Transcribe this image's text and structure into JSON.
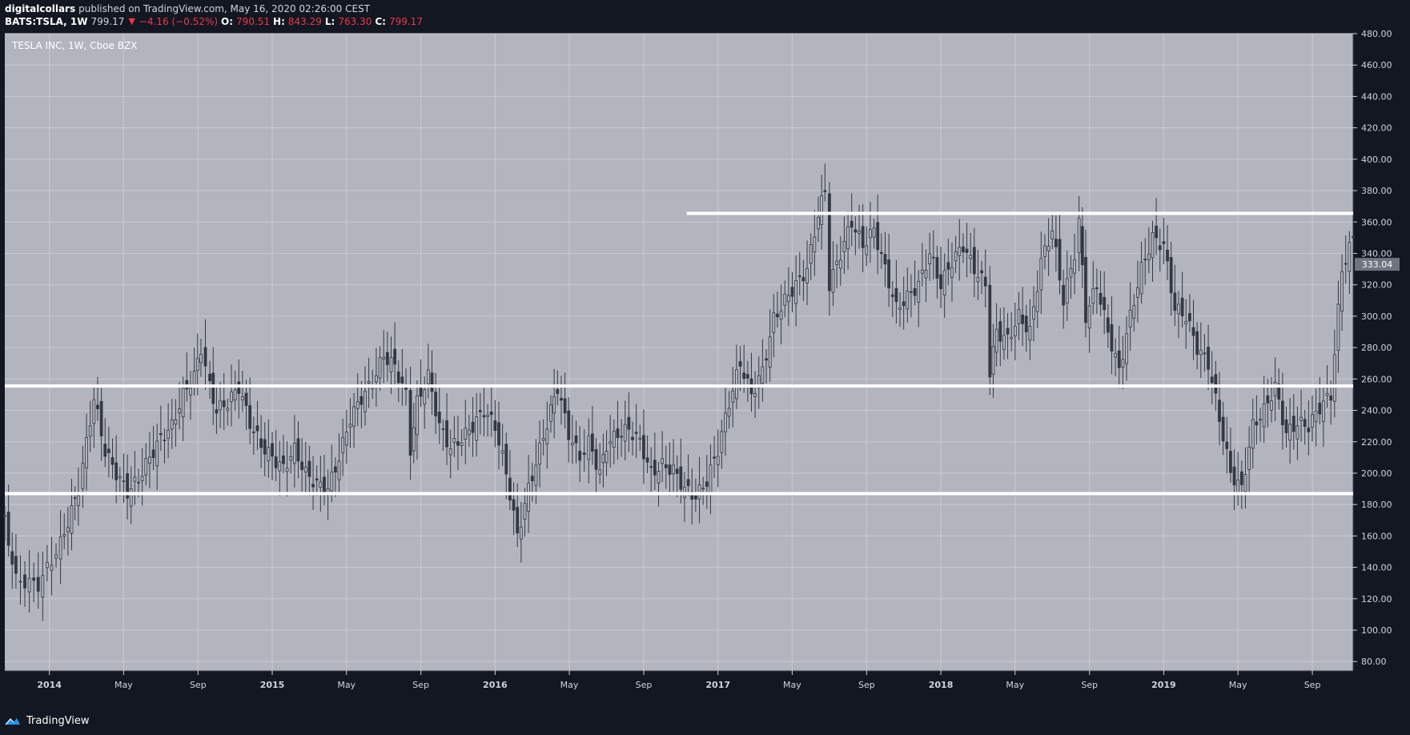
{
  "header": {
    "publisher": "digitalcollars",
    "published_text": "published on TradingView.com, May 16, 2020 02:26:00 CEST",
    "symbol": "BATS:TSLA, 1W",
    "last": "799.17",
    "change": "−4.16 (−0.52%)",
    "o_label": "O:",
    "o_value": "790.51",
    "h_label": "H:",
    "h_value": "843.29",
    "l_label": "L:",
    "l_value": "763.30",
    "c_label": "C:",
    "c_value": "799.17"
  },
  "footer": {
    "brand": "TradingView"
  },
  "colors": {
    "plot_background": "#b2b5be",
    "candle": "#343842",
    "grid": "#c9cbd2",
    "horizontal_line": "#ffffff",
    "price_badge": "#6f747f",
    "axis_text": "#d1d4dc"
  },
  "chart_data": {
    "type": "candlestick",
    "title": "TESLA INC, 1W, Cboe BZX",
    "x_ticks": [
      {
        "label": "2014",
        "time": 2014.0,
        "bold": true
      },
      {
        "label": "May",
        "time": 2014.333
      },
      {
        "label": "Sep",
        "time": 2014.667
      },
      {
        "label": "2015",
        "time": 2015.0,
        "bold": true
      },
      {
        "label": "May",
        "time": 2015.333
      },
      {
        "label": "Sep",
        "time": 2015.667
      },
      {
        "label": "2016",
        "time": 2016.0,
        "bold": true
      },
      {
        "label": "May",
        "time": 2016.333
      },
      {
        "label": "Sep",
        "time": 2016.667
      },
      {
        "label": "2017",
        "time": 2017.0,
        "bold": true
      },
      {
        "label": "May",
        "time": 2017.333
      },
      {
        "label": "Sep",
        "time": 2017.667
      },
      {
        "label": "2018",
        "time": 2018.0,
        "bold": true
      },
      {
        "label": "May",
        "time": 2018.333
      },
      {
        "label": "Sep",
        "time": 2018.667
      },
      {
        "label": "2019",
        "time": 2019.0,
        "bold": true
      },
      {
        "label": "May",
        "time": 2019.333
      },
      {
        "label": "Sep",
        "time": 2019.667
      }
    ],
    "x_range": [
      2013.8,
      2019.85
    ],
    "y_ticks": [
      80,
      100,
      120,
      140,
      160,
      180,
      200,
      220,
      240,
      260,
      280,
      300,
      320,
      340,
      360,
      380,
      400,
      420,
      440,
      460,
      480
    ],
    "y_range": [
      74,
      480
    ],
    "price_badge": "333.04",
    "price_badge_value": 333.04,
    "horizontal_lines": [
      {
        "y": 365.5,
        "x_start": 2016.86
      },
      {
        "y": 255.5,
        "x_start": 2013.8
      },
      {
        "y": 187.0,
        "x_start": 2013.8
      }
    ],
    "weekly_close": [
      [
        2013.8,
        169.0
      ],
      [
        2013.85,
        132.0
      ],
      [
        2013.95,
        129.0
      ],
      [
        2014.05,
        155.0
      ],
      [
        2014.1,
        176.0
      ],
      [
        2014.13,
        190.0
      ],
      [
        2014.15,
        205.0
      ],
      [
        2014.2,
        248.0
      ],
      [
        2014.25,
        214.0
      ],
      [
        2014.3,
        200.0
      ],
      [
        2014.35,
        188.0
      ],
      [
        2014.4,
        196.0
      ],
      [
        2014.45,
        210.0
      ],
      [
        2014.5,
        222.0
      ],
      [
        2014.55,
        230.0
      ],
      [
        2014.6,
        250.0
      ],
      [
        2014.65,
        262.0
      ],
      [
        2014.68,
        280.0
      ],
      [
        2014.72,
        255.0
      ],
      [
        2014.75,
        240.0
      ],
      [
        2014.8,
        245.0
      ],
      [
        2014.85,
        255.0
      ],
      [
        2014.9,
        232.0
      ],
      [
        2014.95,
        218.0
      ],
      [
        2015.0,
        210.0
      ],
      [
        2015.05,
        203.0
      ],
      [
        2015.1,
        215.0
      ],
      [
        2015.15,
        200.0
      ],
      [
        2015.2,
        193.0
      ],
      [
        2015.25,
        190.0
      ],
      [
        2015.3,
        210.0
      ],
      [
        2015.35,
        235.0
      ],
      [
        2015.4,
        248.0
      ],
      [
        2015.45,
        258.0
      ],
      [
        2015.5,
        275.0
      ],
      [
        2015.55,
        268.0
      ],
      [
        2015.6,
        250.0
      ],
      [
        2015.62,
        215.0
      ],
      [
        2015.65,
        245.0
      ],
      [
        2015.7,
        262.0
      ],
      [
        2015.75,
        230.0
      ],
      [
        2015.8,
        216.0
      ],
      [
        2015.85,
        222.0
      ],
      [
        2015.9,
        230.0
      ],
      [
        2015.95,
        240.0
      ],
      [
        2016.0,
        230.0
      ],
      [
        2016.05,
        200.0
      ],
      [
        2016.1,
        160.0
      ],
      [
        2016.15,
        190.0
      ],
      [
        2016.2,
        215.0
      ],
      [
        2016.25,
        240.0
      ],
      [
        2016.28,
        255.0
      ],
      [
        2016.33,
        225.0
      ],
      [
        2016.38,
        210.0
      ],
      [
        2016.42,
        220.0
      ],
      [
        2016.47,
        200.0
      ],
      [
        2016.5,
        218.0
      ],
      [
        2016.55,
        225.0
      ],
      [
        2016.6,
        228.0
      ],
      [
        2016.65,
        220.0
      ],
      [
        2016.7,
        200.0
      ],
      [
        2016.75,
        205.0
      ],
      [
        2016.8,
        202.0
      ],
      [
        2016.85,
        190.0
      ],
      [
        2016.9,
        185.0
      ],
      [
        2016.95,
        195.0
      ],
      [
        2017.0,
        215.0
      ],
      [
        2017.05,
        245.0
      ],
      [
        2017.1,
        270.0
      ],
      [
        2017.15,
        250.0
      ],
      [
        2017.2,
        265.0
      ],
      [
        2017.25,
        298.0
      ],
      [
        2017.3,
        310.0
      ],
      [
        2017.35,
        320.0
      ],
      [
        2017.4,
        330.0
      ],
      [
        2017.45,
        365.0
      ],
      [
        2017.48,
        380.0
      ],
      [
        2017.5,
        320.0
      ],
      [
        2017.55,
        340.0
      ],
      [
        2017.6,
        360.0
      ],
      [
        2017.65,
        345.0
      ],
      [
        2017.7,
        355.0
      ],
      [
        2017.75,
        330.0
      ],
      [
        2017.8,
        305.0
      ],
      [
        2017.85,
        312.0
      ],
      [
        2017.9,
        320.0
      ],
      [
        2017.95,
        340.0
      ],
      [
        2018.0,
        320.0
      ],
      [
        2018.05,
        335.0
      ],
      [
        2018.1,
        345.0
      ],
      [
        2018.15,
        330.0
      ],
      [
        2018.2,
        320.0
      ],
      [
        2018.22,
        265.0
      ],
      [
        2018.25,
        290.0
      ],
      [
        2018.3,
        285.0
      ],
      [
        2018.35,
        300.0
      ],
      [
        2018.4,
        290.0
      ],
      [
        2018.45,
        335.0
      ],
      [
        2018.5,
        355.0
      ],
      [
        2018.55,
        310.0
      ],
      [
        2018.6,
        340.0
      ],
      [
        2018.62,
        360.0
      ],
      [
        2018.65,
        300.0
      ],
      [
        2018.7,
        320.0
      ],
      [
        2018.75,
        290.0
      ],
      [
        2018.8,
        265.0
      ],
      [
        2018.85,
        300.0
      ],
      [
        2018.9,
        330.0
      ],
      [
        2018.95,
        350.0
      ],
      [
        2019.0,
        345.0
      ],
      [
        2019.05,
        305.0
      ],
      [
        2019.1,
        300.0
      ],
      [
        2019.15,
        280.0
      ],
      [
        2019.2,
        270.0
      ],
      [
        2019.25,
        235.0
      ],
      [
        2019.3,
        200.0
      ],
      [
        2019.35,
        190.0
      ],
      [
        2019.4,
        230.0
      ],
      [
        2019.45,
        240.0
      ],
      [
        2019.5,
        255.0
      ],
      [
        2019.55,
        225.0
      ],
      [
        2019.6,
        232.0
      ],
      [
        2019.65,
        230.0
      ],
      [
        2019.7,
        242.0
      ],
      [
        2019.75,
        250.0
      ],
      [
        2019.8,
        330.0
      ],
      [
        2019.85,
        350.0
      ]
    ]
  }
}
